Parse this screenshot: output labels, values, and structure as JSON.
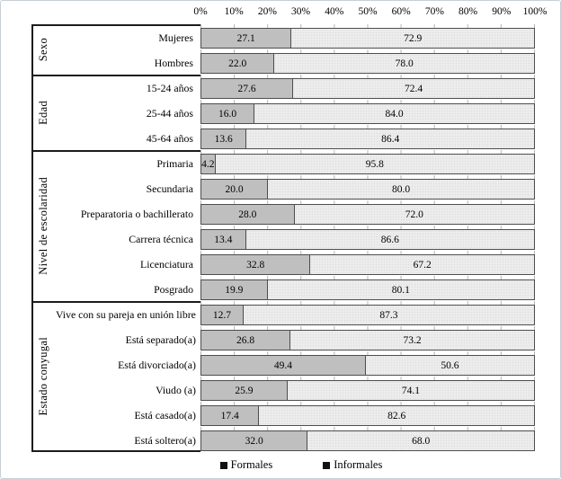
{
  "page": {
    "background": "#ffffff",
    "border_color": "#c7d0d6"
  },
  "chart_data": {
    "type": "bar",
    "orientation": "horizontal",
    "stacked": true,
    "unit": "%",
    "xlim": [
      0,
      100
    ],
    "grid": "minor vertical ticks at 10% steps",
    "legend_position": "bottom-center",
    "axis_ticks": [
      "0%",
      "10%",
      "20%",
      "30%",
      "40%",
      "50%",
      "60%",
      "70%",
      "80%",
      "90%",
      "100%"
    ],
    "series_names": [
      "Formales",
      "Informales"
    ],
    "colors": {
      "formales_fill": "#bfbfbf",
      "informales_fill": "#ececec",
      "bar_border": "#4d4d4d",
      "separator_line": "#1c1c1c",
      "legend_marker": "#111111",
      "tick_mark": "#b4b4b4"
    },
    "legend": [
      {
        "label": "Formales"
      },
      {
        "label": "Informales"
      }
    ],
    "groups": [
      {
        "label": "Sexo",
        "rows": [
          {
            "category": "Mujeres",
            "formales": 27.1,
            "informales": 72.9
          },
          {
            "category": "Hombres",
            "formales": 22.0,
            "informales": 78.0
          }
        ]
      },
      {
        "label": "Edad",
        "rows": [
          {
            "category": "15-24 años",
            "formales": 27.6,
            "informales": 72.4
          },
          {
            "category": "25-44 años",
            "formales": 16.0,
            "informales": 84.0
          },
          {
            "category": "45-64 años",
            "formales": 13.6,
            "informales": 86.4
          }
        ]
      },
      {
        "label": "Nivel de escolaridad",
        "rows": [
          {
            "category": "Primaria",
            "formales": 4.2,
            "informales": 95.8
          },
          {
            "category": "Secundaria",
            "formales": 20.0,
            "informales": 80.0
          },
          {
            "category": "Preparatoria o bachillerato",
            "formales": 28.0,
            "informales": 72.0
          },
          {
            "category": "Carrera técnica",
            "formales": 13.4,
            "informales": 86.6
          },
          {
            "category": "Licenciatura",
            "formales": 32.8,
            "informales": 67.2
          },
          {
            "category": "Posgrado",
            "formales": 19.9,
            "informales": 80.1
          }
        ]
      },
      {
        "label": "Estado conyugal",
        "rows": [
          {
            "category": "Vive con su pareja en unión libre",
            "formales": 12.7,
            "informales": 87.3
          },
          {
            "category": "Está separado(a)",
            "formales": 26.8,
            "informales": 73.2
          },
          {
            "category": "Está divorciado(a)",
            "formales": 49.4,
            "informales": 50.6
          },
          {
            "category": "Viudo (a)",
            "formales": 25.9,
            "informales": 74.1
          },
          {
            "category": "Está casado(a)",
            "formales": 17.4,
            "informales": 82.6
          },
          {
            "category": "Está soltero(a)",
            "formales": 32.0,
            "informales": 68.0
          }
        ]
      }
    ]
  }
}
